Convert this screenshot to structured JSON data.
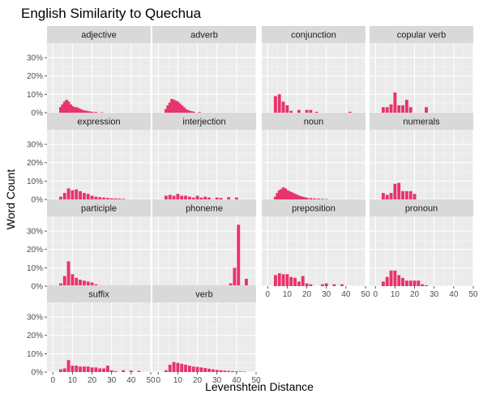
{
  "chart_data": {
    "type": "bar",
    "title": "English Similarity to Quechua",
    "xlabel": "Levenshtein Distance",
    "ylabel": "Word Count",
    "xlim": [
      -3,
      50
    ],
    "ylim": [
      0,
      0.38
    ],
    "x_ticks": [
      0,
      10,
      20,
      30,
      40,
      50
    ],
    "y_ticks": [
      0,
      0.1,
      0.2,
      0.3
    ],
    "y_tick_labels": [
      "0%",
      "10%",
      "20%",
      "30%"
    ],
    "bar_color": "#e8336b",
    "panel_bg": "#ebebeb",
    "strip_bg": "#d9d9d9",
    "grid": true,
    "panels": [
      {
        "label": "adjective",
        "bars": [
          [
            4,
            0.03
          ],
          [
            5,
            0.045
          ],
          [
            6,
            0.06
          ],
          [
            7,
            0.07
          ],
          [
            8,
            0.06
          ],
          [
            9,
            0.045
          ],
          [
            10,
            0.035
          ],
          [
            11,
            0.03
          ],
          [
            12,
            0.03
          ],
          [
            13,
            0.025
          ],
          [
            14,
            0.02
          ],
          [
            15,
            0.015
          ],
          [
            16,
            0.012
          ],
          [
            17,
            0.01
          ],
          [
            18,
            0.008
          ],
          [
            19,
            0.006
          ],
          [
            20,
            0.005
          ],
          [
            22,
            0.004
          ],
          [
            25,
            0.002
          ]
        ]
      },
      {
        "label": "adverb",
        "bars": [
          [
            4,
            0.02
          ],
          [
            5,
            0.04
          ],
          [
            6,
            0.055
          ],
          [
            7,
            0.075
          ],
          [
            8,
            0.07
          ],
          [
            9,
            0.065
          ],
          [
            10,
            0.06
          ],
          [
            11,
            0.05
          ],
          [
            12,
            0.04
          ],
          [
            13,
            0.03
          ],
          [
            14,
            0.02
          ],
          [
            15,
            0.015
          ],
          [
            16,
            0.01
          ],
          [
            17,
            0.008
          ],
          [
            18,
            0.005
          ],
          [
            21,
            0.003
          ]
        ]
      },
      {
        "label": "conjunction",
        "bars": [
          [
            4,
            0.09
          ],
          [
            6,
            0.1
          ],
          [
            8,
            0.06
          ],
          [
            10,
            0.04
          ],
          [
            12,
            0.01
          ],
          [
            16,
            0.015
          ],
          [
            20,
            0.015
          ],
          [
            22,
            0.015
          ],
          [
            25,
            0.005
          ],
          [
            42,
            0.005
          ]
        ]
      },
      {
        "label": "copular verb",
        "bars": [
          [
            4,
            0.03
          ],
          [
            6,
            0.03
          ],
          [
            8,
            0.045
          ],
          [
            10,
            0.11
          ],
          [
            12,
            0.04
          ],
          [
            14,
            0.04
          ],
          [
            16,
            0.07
          ],
          [
            18,
            0.03
          ],
          [
            26,
            0.03
          ]
        ]
      },
      {
        "label": "expression",
        "bars": [
          [
            4,
            0.015
          ],
          [
            6,
            0.035
          ],
          [
            8,
            0.06
          ],
          [
            10,
            0.05
          ],
          [
            12,
            0.055
          ],
          [
            14,
            0.045
          ],
          [
            16,
            0.035
          ],
          [
            18,
            0.03
          ],
          [
            20,
            0.02
          ],
          [
            22,
            0.015
          ],
          [
            24,
            0.012
          ],
          [
            26,
            0.01
          ],
          [
            28,
            0.008
          ],
          [
            30,
            0.006
          ],
          [
            32,
            0.005
          ],
          [
            34,
            0.004
          ],
          [
            36,
            0.003
          ]
        ]
      },
      {
        "label": "interjection",
        "bars": [
          [
            4,
            0.02
          ],
          [
            6,
            0.025
          ],
          [
            8,
            0.02
          ],
          [
            10,
            0.03
          ],
          [
            12,
            0.02
          ],
          [
            14,
            0.02
          ],
          [
            16,
            0.015
          ],
          [
            18,
            0.01
          ],
          [
            20,
            0.02
          ],
          [
            22,
            0.01
          ],
          [
            24,
            0.015
          ],
          [
            26,
            0.01
          ],
          [
            30,
            0.01
          ],
          [
            32,
            0.008
          ],
          [
            36,
            0.012
          ],
          [
            40,
            0.01
          ]
        ]
      },
      {
        "label": "noun",
        "bars": [
          [
            4,
            0.015
          ],
          [
            5,
            0.035
          ],
          [
            6,
            0.05
          ],
          [
            7,
            0.055
          ],
          [
            8,
            0.065
          ],
          [
            9,
            0.06
          ],
          [
            10,
            0.05
          ],
          [
            11,
            0.045
          ],
          [
            12,
            0.04
          ],
          [
            13,
            0.035
          ],
          [
            14,
            0.03
          ],
          [
            15,
            0.025
          ],
          [
            16,
            0.02
          ],
          [
            17,
            0.017
          ],
          [
            18,
            0.014
          ],
          [
            19,
            0.011
          ],
          [
            20,
            0.009
          ],
          [
            22,
            0.007
          ],
          [
            24,
            0.005
          ],
          [
            26,
            0.004
          ],
          [
            28,
            0.003
          ],
          [
            30,
            0.002
          ]
        ]
      },
      {
        "label": "numerals",
        "bars": [
          [
            4,
            0.035
          ],
          [
            6,
            0.025
          ],
          [
            8,
            0.035
          ],
          [
            10,
            0.085
          ],
          [
            12,
            0.09
          ],
          [
            14,
            0.045
          ],
          [
            16,
            0.045
          ],
          [
            18,
            0.045
          ],
          [
            20,
            0.03
          ]
        ]
      },
      {
        "label": "participle",
        "bars": [
          [
            4,
            0.015
          ],
          [
            6,
            0.055
          ],
          [
            8,
            0.135
          ],
          [
            10,
            0.065
          ],
          [
            12,
            0.045
          ],
          [
            14,
            0.035
          ],
          [
            16,
            0.03
          ],
          [
            18,
            0.025
          ],
          [
            20,
            0.02
          ],
          [
            22,
            0.01
          ],
          [
            24,
            0.005
          ]
        ]
      },
      {
        "label": "phoneme",
        "bars": [
          [
            37,
            0.015
          ],
          [
            39,
            0.1
          ],
          [
            41,
            0.335
          ],
          [
            45,
            0.04
          ]
        ]
      },
      {
        "label": "preposition",
        "bars": [
          [
            4,
            0.06
          ],
          [
            6,
            0.07
          ],
          [
            8,
            0.065
          ],
          [
            10,
            0.065
          ],
          [
            12,
            0.05
          ],
          [
            14,
            0.045
          ],
          [
            16,
            0.025
          ],
          [
            18,
            0.055
          ],
          [
            20,
            0.015
          ],
          [
            22,
            0.01
          ],
          [
            28,
            0.01
          ],
          [
            30,
            0.015
          ],
          [
            34,
            0.01
          ],
          [
            38,
            0.01
          ]
        ]
      },
      {
        "label": "pronoun",
        "bars": [
          [
            4,
            0.025
          ],
          [
            6,
            0.05
          ],
          [
            8,
            0.085
          ],
          [
            10,
            0.085
          ],
          [
            12,
            0.06
          ],
          [
            14,
            0.045
          ],
          [
            16,
            0.03
          ],
          [
            18,
            0.03
          ],
          [
            20,
            0.03
          ],
          [
            22,
            0.03
          ],
          [
            24,
            0.01
          ],
          [
            26,
            0.005
          ]
        ]
      },
      {
        "label": "suffix",
        "bars": [
          [
            4,
            0.015
          ],
          [
            6,
            0.02
          ],
          [
            8,
            0.065
          ],
          [
            10,
            0.035
          ],
          [
            12,
            0.035
          ],
          [
            14,
            0.03
          ],
          [
            16,
            0.03
          ],
          [
            18,
            0.03
          ],
          [
            20,
            0.025
          ],
          [
            22,
            0.025
          ],
          [
            24,
            0.02
          ],
          [
            26,
            0.02
          ],
          [
            28,
            0.035
          ],
          [
            30,
            0.01
          ],
          [
            32,
            0.005
          ],
          [
            36,
            0.01
          ],
          [
            40,
            0.008
          ],
          [
            44,
            0.006
          ]
        ]
      },
      {
        "label": "verb",
        "bars": [
          [
            4,
            0.01
          ],
          [
            6,
            0.04
          ],
          [
            8,
            0.055
          ],
          [
            10,
            0.05
          ],
          [
            12,
            0.045
          ],
          [
            14,
            0.04
          ],
          [
            16,
            0.035
          ],
          [
            18,
            0.03
          ],
          [
            20,
            0.028
          ],
          [
            22,
            0.025
          ],
          [
            24,
            0.022
          ],
          [
            26,
            0.018
          ],
          [
            28,
            0.015
          ],
          [
            30,
            0.012
          ],
          [
            32,
            0.01
          ],
          [
            34,
            0.008
          ],
          [
            36,
            0.006
          ],
          [
            38,
            0.005
          ],
          [
            40,
            0.004
          ],
          [
            42,
            0.003
          ],
          [
            44,
            0.002
          ]
        ]
      }
    ]
  }
}
